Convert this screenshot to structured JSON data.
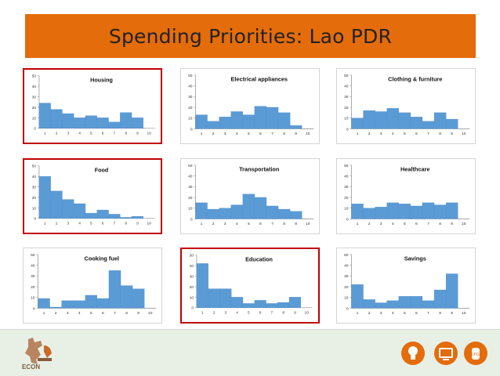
{
  "title": "Spending Priorities: Lao PDR",
  "logo_text": "ECON",
  "footer_icons": [
    "lightbulb-icon",
    "television-icon",
    "lpg-canister-icon"
  ],
  "footer_icon_labels": {
    "lpg": "LPG"
  },
  "colors": {
    "bar": "#5b9bd5",
    "bar_edge": "#4a86c0",
    "title_bg": "#e46c0a",
    "highlight": "#c00000",
    "axis": "#888888",
    "footer_bg": "#e8f0e6"
  },
  "chart_data": [
    {
      "type": "bar",
      "title": "Housing",
      "highlighted": true,
      "categories": [
        "1",
        "2",
        "3",
        "4",
        "5",
        "6",
        "7",
        "8",
        "9",
        "10"
      ],
      "values": [
        24,
        18,
        14,
        10,
        12,
        10,
        6,
        15,
        10,
        0
      ],
      "yticks": [
        "0",
        "10",
        "20",
        "30",
        "40",
        "50"
      ],
      "ylim": [
        0,
        50
      ]
    },
    {
      "type": "bar",
      "title": "Electrical appliances",
      "highlighted": false,
      "categories": [
        "1",
        "2",
        "3",
        "4",
        "5",
        "6",
        "7",
        "8",
        "9",
        "10"
      ],
      "values": [
        13,
        7,
        11,
        16,
        13,
        21,
        20,
        15,
        3,
        0
      ],
      "yticks": [
        "0",
        "10",
        "20",
        "30",
        "40",
        "50"
      ],
      "ylim": [
        0,
        50
      ]
    },
    {
      "type": "bar",
      "title": "Clothing & furniture",
      "highlighted": false,
      "categories": [
        "1",
        "2",
        "3",
        "4",
        "5",
        "6",
        "7",
        "8",
        "9",
        "10"
      ],
      "values": [
        10,
        17,
        16,
        19,
        15,
        11,
        7,
        15,
        9,
        0
      ],
      "yticks": [
        "0",
        "10",
        "20",
        "30",
        "40",
        "50"
      ],
      "ylim": [
        0,
        50
      ]
    },
    {
      "type": "bar",
      "title": "Food",
      "highlighted": true,
      "categories": [
        "1",
        "2",
        "3",
        "4",
        "5",
        "6",
        "7",
        "8",
        "9",
        "10"
      ],
      "values": [
        40,
        26,
        18,
        14,
        5,
        8,
        4,
        1,
        2,
        0
      ],
      "yticks": [
        "0",
        "10",
        "20",
        "30",
        "40",
        "50"
      ],
      "ylim": [
        0,
        50
      ]
    },
    {
      "type": "bar",
      "title": "Transportation",
      "highlighted": false,
      "categories": [
        "1",
        "2",
        "3",
        "4",
        "5",
        "6",
        "7",
        "8",
        "9",
        "10"
      ],
      "values": [
        15,
        9,
        10,
        13,
        23,
        20,
        12,
        9,
        7,
        0
      ],
      "yticks": [
        "0",
        "10",
        "20",
        "30",
        "40",
        "50"
      ],
      "ylim": [
        0,
        50
      ]
    },
    {
      "type": "bar",
      "title": "Healthcare",
      "highlighted": false,
      "categories": [
        "1",
        "2",
        "3",
        "4",
        "5",
        "6",
        "7",
        "8",
        "9",
        "10"
      ],
      "values": [
        14,
        10,
        11,
        15,
        14,
        12,
        15,
        13,
        15,
        0
      ],
      "yticks": [
        "0",
        "10",
        "20",
        "30",
        "40",
        "50"
      ],
      "ylim": [
        0,
        50
      ]
    },
    {
      "type": "bar",
      "title": "Cooking fuel",
      "highlighted": false,
      "categories": [
        "1",
        "2",
        "3",
        "4",
        "5",
        "6",
        "7",
        "8",
        "9",
        "10"
      ],
      "values": [
        9,
        1,
        7,
        7,
        12,
        9,
        35,
        21,
        18,
        0
      ],
      "yticks": [
        "0",
        "10",
        "20",
        "30",
        "40",
        "50"
      ],
      "ylim": [
        0,
        50
      ]
    },
    {
      "type": "bar",
      "title": "Education",
      "highlighted": true,
      "categories": [
        "1",
        "2",
        "3",
        "4",
        "5",
        "6",
        "7",
        "8",
        "9",
        "10"
      ],
      "values": [
        42,
        18,
        18,
        10,
        4,
        7,
        4,
        5,
        10,
        0
      ],
      "yticks": [
        "0",
        "10",
        "20",
        "30",
        "40",
        "50"
      ],
      "ylim": [
        0,
        50
      ]
    },
    {
      "type": "bar",
      "title": "Savings",
      "highlighted": false,
      "categories": [
        "1",
        "2",
        "3",
        "4",
        "5",
        "6",
        "7",
        "8",
        "9",
        "10"
      ],
      "values": [
        22,
        8,
        5,
        7,
        11,
        11,
        7,
        17,
        32,
        0
      ],
      "yticks": [
        "0",
        "10",
        "20",
        "30",
        "40",
        "50"
      ],
      "ylim": [
        0,
        50
      ]
    }
  ]
}
